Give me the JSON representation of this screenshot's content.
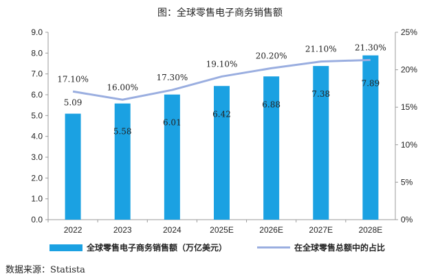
{
  "title": "图：全球零售电子商务销售额",
  "source": "数据来源：Statista",
  "colors": {
    "bar": "#1BA1E2",
    "line": "#9AAEE0",
    "axis": "#999999"
  },
  "chart_data": {
    "type": "bar",
    "categories": [
      "2022",
      "2023",
      "2024",
      "2025E",
      "2026E",
      "2027E",
      "2028E"
    ],
    "series": [
      {
        "name": "全球零售电子商务销售额（万亿美元）",
        "type": "bar",
        "axis": "left",
        "values": [
          5.09,
          5.58,
          6.01,
          6.42,
          6.88,
          7.38,
          7.89
        ],
        "labels": [
          "5.09",
          "5.58",
          "6.01",
          "6.42",
          "6.88",
          "7.38",
          "7.89"
        ]
      },
      {
        "name": "在全球零售总额中的占比",
        "type": "line",
        "axis": "right",
        "values": [
          17.1,
          16.0,
          17.3,
          19.1,
          20.2,
          21.1,
          21.3
        ],
        "labels": [
          "17.10%",
          "16.00%",
          "17.30%",
          "19.10%",
          "20.20%",
          "21.10%",
          "21.30%"
        ]
      }
    ],
    "ylim": [
      0,
      9
    ],
    "yticks": [
      "0.0",
      "1.0",
      "2.0",
      "3.0",
      "4.0",
      "5.0",
      "6.0",
      "7.0",
      "8.0",
      "9.0"
    ],
    "y2lim": [
      0,
      25
    ],
    "y2ticks": [
      "0%",
      "5%",
      "10%",
      "15%",
      "20%",
      "25%"
    ],
    "legend_position": "bottom",
    "grid": false
  }
}
